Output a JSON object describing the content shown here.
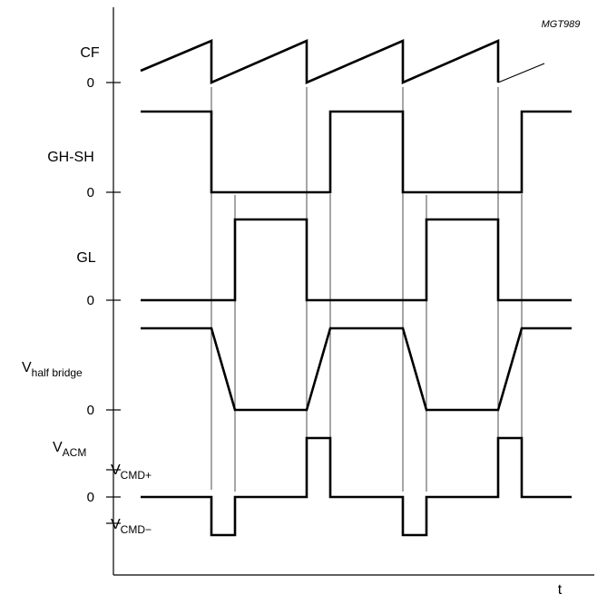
{
  "figure_ref": "MGT989",
  "time_axis_label": "t",
  "zero_label": "0",
  "signals": {
    "cf": {
      "label": "CF"
    },
    "gh_sh": {
      "label": "GH-SH"
    },
    "gl": {
      "label": "GL"
    },
    "v_half_bridge": {
      "label_main": "V",
      "label_sub": "half bridge"
    },
    "v_acm": {
      "label_main": "V",
      "label_sub": "ACM",
      "level_pos_main": "V",
      "level_pos_sub": "CMD+",
      "level_neg_main": "V",
      "level_neg_sub": "CMD−"
    }
  }
}
